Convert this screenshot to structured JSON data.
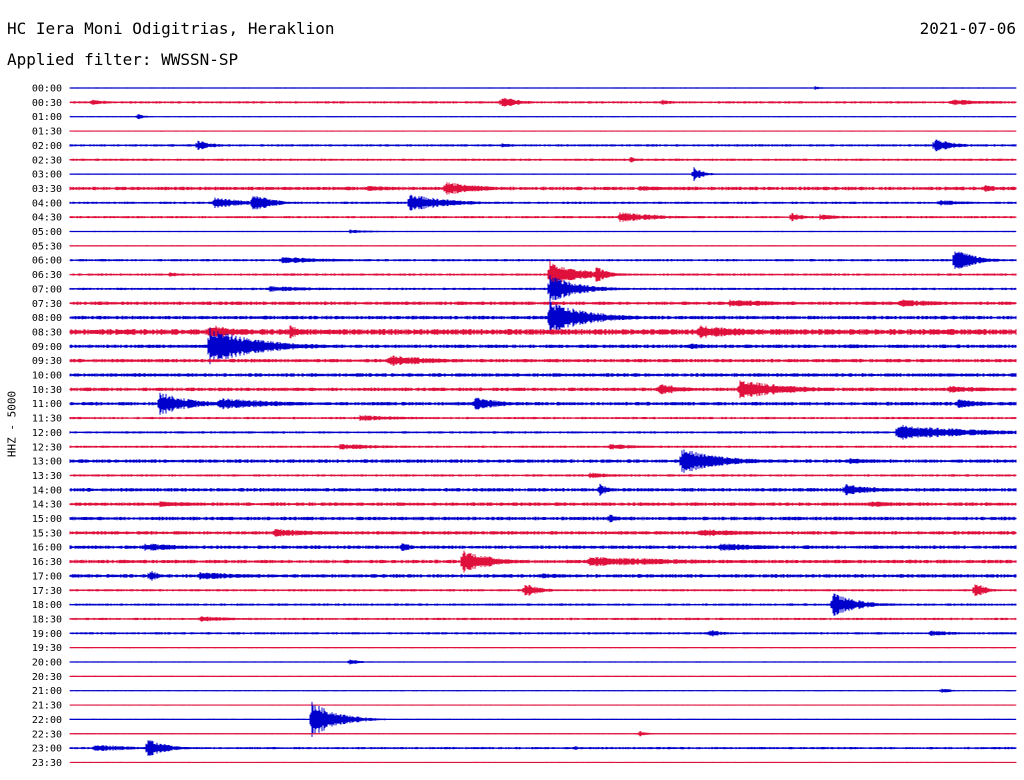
{
  "header": {
    "station": "HC Iera Moni Odigitrias, Heraklion",
    "date": "2021-07-06",
    "filter": "Applied filter: WWSSN-SP"
  },
  "chart_data": {
    "type": "line",
    "title": "HC Iera Moni Odigitrias, Heraklion",
    "ylabel": "HHZ - 5000",
    "grid": false,
    "colors": {
      "even": "#0000cc",
      "odd": "#e0103c",
      "text": "#000000"
    },
    "tick_labels": [
      "00:00",
      "00:30",
      "01:00",
      "01:30",
      "02:00",
      "02:30",
      "03:00",
      "03:30",
      "04:00",
      "04:30",
      "05:00",
      "05:30",
      "06:00",
      "06:30",
      "07:00",
      "07:30",
      "08:00",
      "08:30",
      "09:00",
      "09:30",
      "10:00",
      "10:30",
      "11:00",
      "11:30",
      "12:00",
      "12:30",
      "13:00",
      "13:30",
      "14:00",
      "14:30",
      "15:00",
      "15:30",
      "16:00",
      "16:30",
      "17:00",
      "17:30",
      "18:00",
      "18:30",
      "19:00",
      "19:30",
      "20:00",
      "20:30",
      "21:00",
      "21:30",
      "22:00",
      "22:30",
      "23:00",
      "23:30"
    ],
    "noise": [
      1,
      2,
      1,
      1,
      2,
      2,
      1,
      3,
      2,
      2,
      1,
      1,
      2,
      2,
      2,
      3,
      3,
      5,
      3,
      3,
      3,
      3,
      3,
      2,
      2,
      2,
      3,
      2,
      3,
      3,
      3,
      3,
      3,
      3,
      3,
      2,
      2,
      2,
      2,
      1,
      1,
      1,
      1,
      1,
      1,
      1,
      2,
      1
    ],
    "events": [
      {
        "row": 0,
        "x": 815,
        "amp": 2,
        "dur": 8
      },
      {
        "row": 1,
        "x": 92,
        "amp": 3,
        "dur": 20
      },
      {
        "row": 1,
        "x": 502,
        "amp": 6,
        "dur": 18
      },
      {
        "row": 1,
        "x": 662,
        "amp": 3,
        "dur": 14
      },
      {
        "row": 1,
        "x": 952,
        "amp": 3,
        "dur": 55
      },
      {
        "row": 2,
        "x": 138,
        "amp": 3,
        "dur": 8
      },
      {
        "row": 4,
        "x": 198,
        "amp": 6,
        "dur": 14
      },
      {
        "row": 4,
        "x": 502,
        "amp": 2,
        "dur": 22
      },
      {
        "row": 4,
        "x": 935,
        "amp": 7,
        "dur": 20
      },
      {
        "row": 5,
        "x": 630,
        "amp": 3,
        "dur": 10
      },
      {
        "row": 6,
        "x": 694,
        "amp": 7,
        "dur": 10
      },
      {
        "row": 7,
        "x": 368,
        "amp": 3,
        "dur": 40
      },
      {
        "row": 7,
        "x": 446,
        "amp": 7,
        "dur": 35
      },
      {
        "row": 7,
        "x": 640,
        "amp": 3,
        "dur": 30
      },
      {
        "row": 7,
        "x": 985,
        "amp": 4,
        "dur": 16
      },
      {
        "row": 8,
        "x": 215,
        "amp": 6,
        "dur": 30
      },
      {
        "row": 8,
        "x": 253,
        "amp": 10,
        "dur": 18
      },
      {
        "row": 8,
        "x": 410,
        "amp": 9,
        "dur": 38
      },
      {
        "row": 8,
        "x": 940,
        "amp": 3,
        "dur": 35
      },
      {
        "row": 9,
        "x": 620,
        "amp": 5,
        "dur": 45
      },
      {
        "row": 9,
        "x": 792,
        "amp": 5,
        "dur": 12
      },
      {
        "row": 9,
        "x": 820,
        "amp": 3,
        "dur": 30
      },
      {
        "row": 10,
        "x": 350,
        "amp": 2,
        "dur": 30
      },
      {
        "row": 12,
        "x": 282,
        "amp": 4,
        "dur": 50
      },
      {
        "row": 12,
        "x": 955,
        "amp": 12,
        "dur": 20
      },
      {
        "row": 13,
        "x": 170,
        "amp": 3,
        "dur": 10
      },
      {
        "row": 13,
        "x": 550,
        "amp": 14,
        "dur": 30
      },
      {
        "row": 13,
        "x": 596,
        "amp": 9,
        "dur": 12
      },
      {
        "row": 14,
        "x": 270,
        "amp": 3,
        "dur": 60
      },
      {
        "row": 14,
        "x": 550,
        "amp": 14,
        "dur": 30
      },
      {
        "row": 15,
        "x": 730,
        "amp": 4,
        "dur": 60
      },
      {
        "row": 15,
        "x": 900,
        "amp": 4,
        "dur": 50
      },
      {
        "row": 16,
        "x": 550,
        "amp": 16,
        "dur": 40
      },
      {
        "row": 17,
        "x": 210,
        "amp": 8,
        "dur": 30
      },
      {
        "row": 17,
        "x": 290,
        "amp": 7,
        "dur": 14
      },
      {
        "row": 17,
        "x": 700,
        "amp": 7,
        "dur": 60
      },
      {
        "row": 18,
        "x": 210,
        "amp": 18,
        "dur": 50
      },
      {
        "row": 18,
        "x": 690,
        "amp": 3,
        "dur": 30
      },
      {
        "row": 18,
        "x": 850,
        "amp": 3,
        "dur": 20
      },
      {
        "row": 19,
        "x": 390,
        "amp": 6,
        "dur": 50
      },
      {
        "row": 20,
        "x": 580,
        "amp": 2,
        "dur": 30
      },
      {
        "row": 21,
        "x": 660,
        "amp": 6,
        "dur": 25
      },
      {
        "row": 21,
        "x": 740,
        "amp": 10,
        "dur": 50
      },
      {
        "row": 21,
        "x": 950,
        "amp": 4,
        "dur": 45
      },
      {
        "row": 22,
        "x": 160,
        "amp": 12,
        "dur": 30
      },
      {
        "row": 22,
        "x": 220,
        "amp": 6,
        "dur": 65
      },
      {
        "row": 22,
        "x": 475,
        "amp": 7,
        "dur": 28
      },
      {
        "row": 22,
        "x": 958,
        "amp": 5,
        "dur": 30
      },
      {
        "row": 23,
        "x": 360,
        "amp": 3,
        "dur": 60
      },
      {
        "row": 24,
        "x": 898,
        "amp": 8,
        "dur": 80
      },
      {
        "row": 25,
        "x": 340,
        "amp": 3,
        "dur": 60
      },
      {
        "row": 25,
        "x": 610,
        "amp": 3,
        "dur": 40
      },
      {
        "row": 26,
        "x": 682,
        "amp": 13,
        "dur": 40
      },
      {
        "row": 26,
        "x": 850,
        "amp": 3,
        "dur": 40
      },
      {
        "row": 27,
        "x": 590,
        "amp": 3,
        "dur": 30
      },
      {
        "row": 28,
        "x": 600,
        "amp": 7,
        "dur": 8
      },
      {
        "row": 28,
        "x": 845,
        "amp": 6,
        "dur": 35
      },
      {
        "row": 29,
        "x": 160,
        "amp": 3,
        "dur": 60
      },
      {
        "row": 29,
        "x": 870,
        "amp": 3,
        "dur": 60
      },
      {
        "row": 30,
        "x": 610,
        "amp": 5,
        "dur": 10
      },
      {
        "row": 31,
        "x": 275,
        "amp": 4,
        "dur": 60
      },
      {
        "row": 31,
        "x": 700,
        "amp": 4,
        "dur": 60
      },
      {
        "row": 32,
        "x": 145,
        "amp": 4,
        "dur": 50
      },
      {
        "row": 32,
        "x": 402,
        "amp": 5,
        "dur": 10
      },
      {
        "row": 32,
        "x": 720,
        "amp": 4,
        "dur": 60
      },
      {
        "row": 33,
        "x": 463,
        "amp": 12,
        "dur": 30
      },
      {
        "row": 33,
        "x": 590,
        "amp": 5,
        "dur": 120
      },
      {
        "row": 34,
        "x": 150,
        "amp": 6,
        "dur": 10
      },
      {
        "row": 34,
        "x": 200,
        "amp": 4,
        "dur": 55
      },
      {
        "row": 34,
        "x": 540,
        "amp": 3,
        "dur": 40
      },
      {
        "row": 35,
        "x": 525,
        "amp": 7,
        "dur": 16
      },
      {
        "row": 35,
        "x": 975,
        "amp": 8,
        "dur": 12
      },
      {
        "row": 36,
        "x": 833,
        "amp": 12,
        "dur": 25
      },
      {
        "row": 37,
        "x": 200,
        "amp": 3,
        "dur": 40
      },
      {
        "row": 38,
        "x": 710,
        "amp": 4,
        "dur": 15
      },
      {
        "row": 38,
        "x": 930,
        "amp": 3,
        "dur": 30
      },
      {
        "row": 40,
        "x": 350,
        "amp": 3,
        "dur": 12
      },
      {
        "row": 42,
        "x": 942,
        "amp": 3,
        "dur": 10
      },
      {
        "row": 44,
        "x": 312,
        "amp": 18,
        "dur": 25
      },
      {
        "row": 45,
        "x": 640,
        "amp": 3,
        "dur": 10
      },
      {
        "row": 46,
        "x": 95,
        "amp": 4,
        "dur": 40
      },
      {
        "row": 46,
        "x": 148,
        "amp": 10,
        "dur": 18
      },
      {
        "row": 46,
        "x": 575,
        "amp": 2,
        "dur": 10
      }
    ]
  }
}
